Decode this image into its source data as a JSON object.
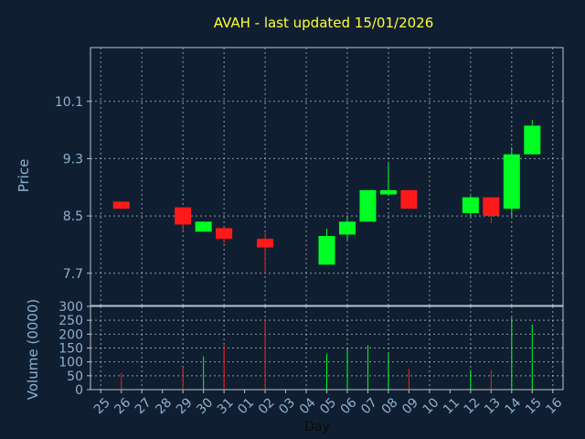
{
  "colors": {
    "background": "#0f1f31",
    "axis_text": "#8fb0d0",
    "title": "#ffff33",
    "grid": "#cfd8e3",
    "border": "#b8c4d0",
    "up": "#00ff22",
    "down": "#ff1a1a"
  },
  "chart_data": [
    {
      "type": "candlestick",
      "title": "AVAH - last updated 15/01/2026",
      "ylabel": "Price",
      "ylim": [
        7.25,
        10.85
      ],
      "yticks": [
        "7.7",
        "8.5",
        "9.3",
        "10.1"
      ],
      "grid": true,
      "categories": [
        "25",
        "26",
        "27",
        "28",
        "29",
        "30",
        "31",
        "01",
        "02",
        "03",
        "04",
        "05",
        "06",
        "07",
        "08",
        "09",
        "10",
        "11",
        "12",
        "13",
        "14",
        "15",
        "16"
      ],
      "candles": [
        {
          "day": "26",
          "open": 8.7,
          "close": 8.6,
          "high": 8.7,
          "low": 8.6
        },
        {
          "day": "29",
          "open": 8.62,
          "close": 8.38,
          "high": 8.62,
          "low": 8.3
        },
        {
          "day": "30",
          "open": 8.28,
          "close": 8.42,
          "high": 8.42,
          "low": 8.28
        },
        {
          "day": "31",
          "open": 8.33,
          "close": 8.18,
          "high": 8.33,
          "low": 8.12
        },
        {
          "day": "02",
          "open": 8.18,
          "close": 8.06,
          "high": 8.26,
          "low": 7.7
        },
        {
          "day": "05",
          "open": 7.82,
          "close": 8.22,
          "high": 8.32,
          "low": 7.82
        },
        {
          "day": "06",
          "open": 8.24,
          "close": 8.42,
          "high": 8.5,
          "low": 8.16
        },
        {
          "day": "07",
          "open": 8.42,
          "close": 8.86,
          "high": 8.86,
          "low": 8.42
        },
        {
          "day": "08",
          "open": 8.8,
          "close": 8.86,
          "high": 9.24,
          "low": 8.78
        },
        {
          "day": "09",
          "open": 8.86,
          "close": 8.6,
          "high": 8.86,
          "low": 8.6
        },
        {
          "day": "12",
          "open": 8.54,
          "close": 8.76,
          "high": 8.78,
          "low": 8.5
        },
        {
          "day": "13",
          "open": 8.76,
          "close": 8.5,
          "high": 8.76,
          "low": 8.4
        },
        {
          "day": "14",
          "open": 8.6,
          "close": 9.36,
          "high": 9.46,
          "low": 8.5
        },
        {
          "day": "15",
          "open": 9.36,
          "close": 9.76,
          "high": 9.84,
          "low": 9.36
        }
      ]
    },
    {
      "type": "bar",
      "ylabel": "Volume (0000)",
      "xlabel": "Day",
      "ylim": [
        0,
        300
      ],
      "yticks": [
        "0",
        "50",
        "100",
        "150",
        "200",
        "250",
        "300"
      ],
      "grid": true,
      "categories": [
        "25",
        "26",
        "27",
        "28",
        "29",
        "30",
        "31",
        "01",
        "02",
        "03",
        "04",
        "05",
        "06",
        "07",
        "08",
        "09",
        "10",
        "11",
        "12",
        "13",
        "14",
        "15",
        "16"
      ],
      "bars": [
        {
          "day": "26",
          "value": 60,
          "direction": "down"
        },
        {
          "day": "29",
          "value": 80,
          "direction": "down"
        },
        {
          "day": "30",
          "value": 120,
          "direction": "up"
        },
        {
          "day": "31",
          "value": 160,
          "direction": "down"
        },
        {
          "day": "02",
          "value": 255,
          "direction": "down"
        },
        {
          "day": "05",
          "value": 130,
          "direction": "up"
        },
        {
          "day": "06",
          "value": 145,
          "direction": "up"
        },
        {
          "day": "07",
          "value": 160,
          "direction": "up"
        },
        {
          "day": "08",
          "value": 130,
          "direction": "up"
        },
        {
          "day": "09",
          "value": 75,
          "direction": "down"
        },
        {
          "day": "12",
          "value": 70,
          "direction": "up"
        },
        {
          "day": "13",
          "value": 70,
          "direction": "down"
        },
        {
          "day": "14",
          "value": 260,
          "direction": "up"
        },
        {
          "day": "15",
          "value": 235,
          "direction": "up"
        }
      ]
    }
  ]
}
